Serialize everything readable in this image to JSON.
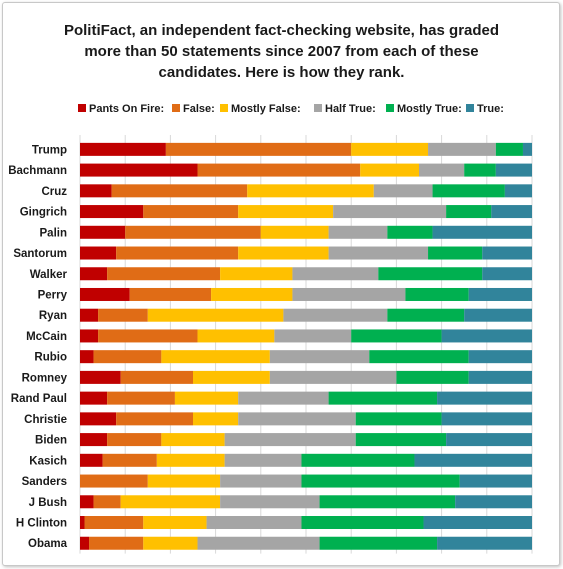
{
  "title_lines": [
    "PolitiFact,  an independent fact-checking website, has graded",
    "more than 50 statements since 2007 from each of these",
    "candidates. Here is how they rank."
  ],
  "chart_data": {
    "type": "bar",
    "orientation": "horizontal",
    "stacked": "percent",
    "title": "PolitiFact,  an independent fact-checking website, has graded more than 50 statements since 2007 from each of these candidates. Here is how they rank.",
    "xlim": [
      0,
      100
    ],
    "grid": true,
    "legend_position": "top",
    "categories": [
      "Trump",
      "Bachmann",
      "Cruz",
      "Gingrich",
      "Palin",
      "Santorum",
      "Walker",
      "Perry",
      "Ryan",
      "McCain",
      "Rubio",
      "Romney",
      "Rand Paul",
      "Christie",
      "Biden",
      "Kasich",
      "Sanders",
      "J Bush",
      "H Clinton",
      "Obama"
    ],
    "series": [
      {
        "name": "Pants On Fire:",
        "color": "#c00000",
        "values": [
          19,
          26,
          7,
          14,
          10,
          8,
          6,
          11,
          4,
          4,
          3,
          9,
          6,
          8,
          6,
          5,
          0,
          3,
          1,
          2
        ]
      },
      {
        "name": "False:",
        "color": "#e06c16",
        "values": [
          41,
          36,
          30,
          21,
          30,
          27,
          25,
          18,
          11,
          22,
          15,
          16,
          15,
          17,
          12,
          12,
          15,
          6,
          13,
          12
        ]
      },
      {
        "name": "Mostly False:",
        "color": "#ffc000",
        "values": [
          17,
          13,
          28,
          21,
          15,
          20,
          16,
          18,
          30,
          17,
          24,
          17,
          14,
          10,
          14,
          15,
          16,
          22,
          14,
          12
        ]
      },
      {
        "name": "Half True:",
        "color": "#a5a5a5",
        "values": [
          15,
          10,
          13,
          25,
          13,
          22,
          19,
          25,
          23,
          17,
          22,
          28,
          20,
          26,
          29,
          17,
          18,
          22,
          21,
          27
        ]
      },
      {
        "name": "Mostly True:",
        "color": "#00b050",
        "values": [
          6,
          7,
          16,
          10,
          10,
          12,
          23,
          14,
          17,
          20,
          22,
          16,
          24,
          19,
          20,
          25,
          35,
          30,
          27,
          26
        ]
      },
      {
        "name": "True:",
        "color": "#31849b",
        "values": [
          2,
          8,
          6,
          9,
          22,
          11,
          11,
          14,
          15,
          20,
          14,
          14,
          21,
          20,
          19,
          26,
          16,
          17,
          24,
          21
        ]
      }
    ]
  }
}
